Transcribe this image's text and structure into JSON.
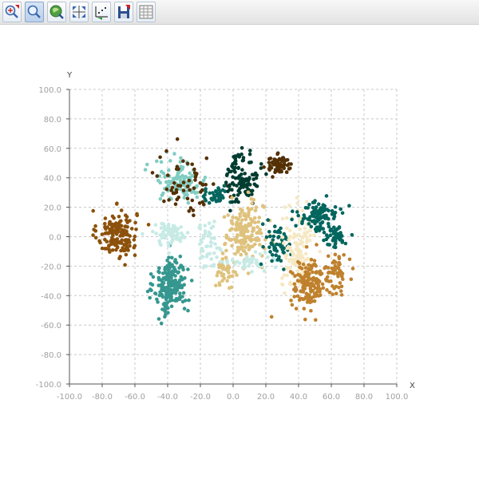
{
  "toolbar": {
    "buttons": [
      {
        "name": "zoom-in-button",
        "icon": "zoom-in-icon",
        "active": false
      },
      {
        "name": "zoom-button",
        "icon": "magnifier-icon",
        "active": true
      },
      {
        "name": "pan-button",
        "icon": "pan-globe-icon",
        "active": false
      },
      {
        "name": "fit-button",
        "icon": "fit-arrows-icon",
        "active": false
      },
      {
        "name": "reset-axes-button",
        "icon": "axes-reset-icon",
        "active": false
      },
      {
        "name": "save-button",
        "icon": "save-disk-icon",
        "active": false
      },
      {
        "name": "table-button",
        "icon": "table-grid-icon",
        "active": false
      }
    ]
  },
  "chart_data": {
    "type": "scatter",
    "xlabel": "X",
    "ylabel": "Y",
    "xlim": [
      -100,
      100
    ],
    "ylim": [
      -100,
      100
    ],
    "xticks": [
      -100,
      -80,
      -60,
      -40,
      -20,
      0,
      20,
      40,
      60,
      80,
      100
    ],
    "yticks": [
      -100,
      -80,
      -60,
      -40,
      -20,
      0,
      20,
      40,
      60,
      80,
      100
    ],
    "tick_format": "0.0",
    "grid": true,
    "grid_style": "dashed",
    "clusters": [
      {
        "color": "#8c510a",
        "center": [
          -71,
          2
        ],
        "spread": [
          6,
          8
        ],
        "n": 150
      },
      {
        "color": "#35978f",
        "center": [
          -38,
          -33
        ],
        "spread": [
          5,
          10
        ],
        "n": 200
      },
      {
        "color": "#80cdc1",
        "center": [
          -32,
          38
        ],
        "spread": [
          8,
          7
        ],
        "n": 110
      },
      {
        "color": "#543005",
        "center": [
          -28,
          36
        ],
        "spread": [
          9,
          10
        ],
        "n": 60
      },
      {
        "color": "#c7eae5",
        "center": [
          -38,
          2
        ],
        "spread": [
          6,
          4
        ],
        "n": 70
      },
      {
        "color": "#c7eae5",
        "center": [
          -15,
          -5
        ],
        "spread": [
          4,
          8
        ],
        "n": 50
      },
      {
        "color": "#01665e",
        "center": [
          -11,
          27
        ],
        "spread": [
          4,
          3
        ],
        "n": 40
      },
      {
        "color": "#003c30",
        "center": [
          6,
          40
        ],
        "spread": [
          5,
          9
        ],
        "n": 110
      },
      {
        "color": "#543005",
        "center": [
          28,
          49
        ],
        "spread": [
          4,
          3
        ],
        "n": 70
      },
      {
        "color": "#dfc27d",
        "center": [
          7,
          2
        ],
        "spread": [
          6,
          10
        ],
        "n": 180
      },
      {
        "color": "#dfc27d",
        "center": [
          -4,
          -24
        ],
        "spread": [
          3,
          4
        ],
        "n": 40
      },
      {
        "color": "#c7eae5",
        "center": [
          12,
          -17
        ],
        "spread": [
          7,
          3
        ],
        "n": 40
      },
      {
        "color": "#01665e",
        "center": [
          27,
          -5
        ],
        "spread": [
          4,
          8
        ],
        "n": 60
      },
      {
        "color": "#f6e8c3",
        "center": [
          40,
          -10
        ],
        "spread": [
          5,
          14
        ],
        "n": 140
      },
      {
        "color": "#bf812d",
        "center": [
          47,
          -32
        ],
        "spread": [
          6,
          8
        ],
        "n": 150
      },
      {
        "color": "#bf812d",
        "center": [
          64,
          -24
        ],
        "spread": [
          3,
          6
        ],
        "n": 50
      },
      {
        "color": "#01665e",
        "center": [
          52,
          14
        ],
        "spread": [
          6,
          5
        ],
        "n": 100
      },
      {
        "color": "#01665e",
        "center": [
          62,
          0
        ],
        "spread": [
          4,
          4
        ],
        "n": 50
      }
    ]
  },
  "colors": {
    "grid": "#c8c8c8",
    "axis": "#555555",
    "tick_text": "#a0a0a0"
  }
}
